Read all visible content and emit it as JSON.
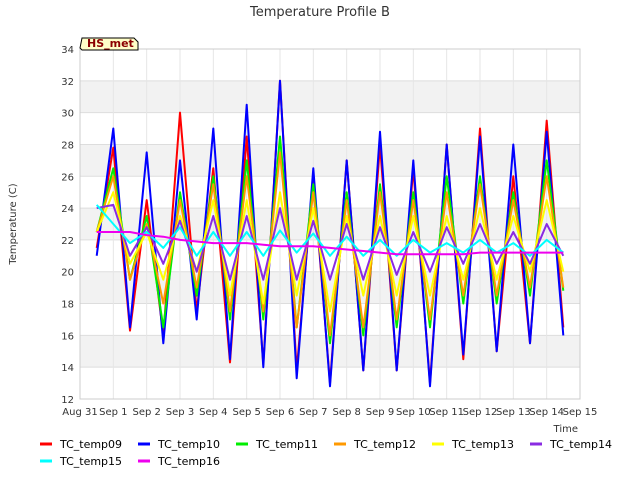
{
  "chart_data": {
    "type": "line",
    "title": "Temperature Profile B",
    "xlabel": "Time",
    "ylabel": "Temperature (C)",
    "badge": "HS_met",
    "ylim": [
      12,
      34
    ],
    "yticks": [
      12,
      14,
      16,
      18,
      20,
      22,
      24,
      26,
      28,
      30,
      32,
      34
    ],
    "xlim": [
      "2023-08-31",
      "2023-09-15"
    ],
    "xticks": [
      "Aug 31",
      "Sep 1",
      "Sep 2",
      "Sep 3",
      "Sep 4",
      "Sep 5",
      "Sep 6",
      "Sep 7",
      "Sep 8",
      "Sep 9",
      "Sep 10",
      "Sep 11",
      "Sep 12",
      "Sep 13",
      "Sep 14",
      "Sep 15"
    ],
    "grid": true,
    "legend_position": "bottom",
    "x": [
      "Aug 31 12:00",
      "Sep 1 00:00",
      "Sep 1 12:00",
      "Sep 2 00:00",
      "Sep 2 12:00",
      "Sep 3 00:00",
      "Sep 3 12:00",
      "Sep 4 00:00",
      "Sep 4 12:00",
      "Sep 5 00:00",
      "Sep 5 12:00",
      "Sep 6 00:00",
      "Sep 6 12:00",
      "Sep 7 00:00",
      "Sep 7 12:00",
      "Sep 8 00:00",
      "Sep 8 12:00",
      "Sep 9 00:00",
      "Sep 9 12:00",
      "Sep 10 00:00",
      "Sep 10 12:00",
      "Sep 11 00:00",
      "Sep 11 12:00",
      "Sep 12 00:00",
      "Sep 12 12:00",
      "Sep 13 00:00",
      "Sep 13 12:00",
      "Sep 14 00:00",
      "Sep 14 12:00"
    ],
    "series": [
      {
        "name": "TC_temp09",
        "color": "#ff0000",
        "values": [
          21.5,
          27.8,
          16.3,
          24.5,
          16.0,
          30.0,
          17.5,
          26.5,
          14.3,
          28.5,
          14.2,
          32.0,
          13.8,
          26.0,
          13.0,
          27.0,
          13.8,
          28.0,
          13.8,
          26.5,
          13.0,
          28.0,
          14.5,
          29.0,
          15.0,
          26.0,
          15.5,
          29.5,
          16.5
        ]
      },
      {
        "name": "TC_temp10",
        "color": "#0000ff",
        "values": [
          21.0,
          29.0,
          16.5,
          27.5,
          15.5,
          27.0,
          17.0,
          29.0,
          14.5,
          30.5,
          14.0,
          32.0,
          13.3,
          26.5,
          12.8,
          27.0,
          13.8,
          28.8,
          13.8,
          27.0,
          12.8,
          28.0,
          14.8,
          28.5,
          15.0,
          28.0,
          15.5,
          28.8,
          16.0
        ]
      },
      {
        "name": "TC_temp11",
        "color": "#00ee00",
        "values": [
          22.5,
          26.5,
          19.5,
          23.5,
          16.5,
          25.0,
          18.5,
          26.0,
          17.0,
          27.0,
          17.0,
          28.5,
          16.5,
          25.5,
          15.5,
          25.0,
          16.0,
          25.5,
          16.5,
          25.0,
          16.5,
          26.0,
          18.0,
          26.0,
          18.0,
          25.0,
          18.5,
          27.0,
          18.8
        ]
      },
      {
        "name": "TC_temp12",
        "color": "#ff9900",
        "values": [
          22.5,
          26.0,
          19.5,
          23.0,
          18.0,
          24.5,
          19.0,
          25.5,
          17.5,
          26.0,
          17.5,
          27.5,
          16.5,
          25.0,
          16.0,
          24.5,
          16.5,
          25.0,
          17.0,
          24.5,
          17.0,
          25.0,
          18.5,
          25.5,
          18.5,
          24.5,
          19.0,
          26.0,
          19.0
        ]
      },
      {
        "name": "TC_temp13",
        "color": "#ffff00",
        "values": [
          22.5,
          25.0,
          20.5,
          22.5,
          19.5,
          23.5,
          20.0,
          24.5,
          18.5,
          24.5,
          18.0,
          25.0,
          18.5,
          24.0,
          17.5,
          23.5,
          18.5,
          23.5,
          18.5,
          23.5,
          18.5,
          23.5,
          19.5,
          24.0,
          19.5,
          23.5,
          20.0,
          24.5,
          20.0
        ]
      },
      {
        "name": "TC_temp14",
        "color": "#8a2be2",
        "values": [
          24.0,
          24.2,
          21.0,
          22.8,
          20.5,
          23.2,
          20.0,
          23.5,
          19.5,
          23.5,
          19.5,
          24.0,
          19.5,
          23.2,
          19.5,
          23.0,
          19.5,
          22.8,
          19.8,
          22.5,
          20.0,
          22.8,
          20.5,
          23.0,
          20.5,
          22.5,
          20.5,
          23.0,
          21.0
        ]
      },
      {
        "name": "TC_temp15",
        "color": "#00ffff",
        "values": [
          24.2,
          23.0,
          21.8,
          22.5,
          21.5,
          22.8,
          21.0,
          22.5,
          21.0,
          22.5,
          21.0,
          22.6,
          21.2,
          22.4,
          21.0,
          22.2,
          21.0,
          22.0,
          21.0,
          22.0,
          21.2,
          21.8,
          21.2,
          22.0,
          21.2,
          21.8,
          21.0,
          22.0,
          21.2
        ]
      },
      {
        "name": "TC_temp16",
        "color": "#ee00ee",
        "values": [
          22.5,
          22.5,
          22.5,
          22.3,
          22.2,
          22.0,
          21.9,
          21.8,
          21.8,
          21.8,
          21.7,
          21.6,
          21.6,
          21.6,
          21.5,
          21.4,
          21.3,
          21.2,
          21.1,
          21.1,
          21.1,
          21.1,
          21.1,
          21.2,
          21.2,
          21.2,
          21.2,
          21.2,
          21.2
        ]
      }
    ]
  }
}
